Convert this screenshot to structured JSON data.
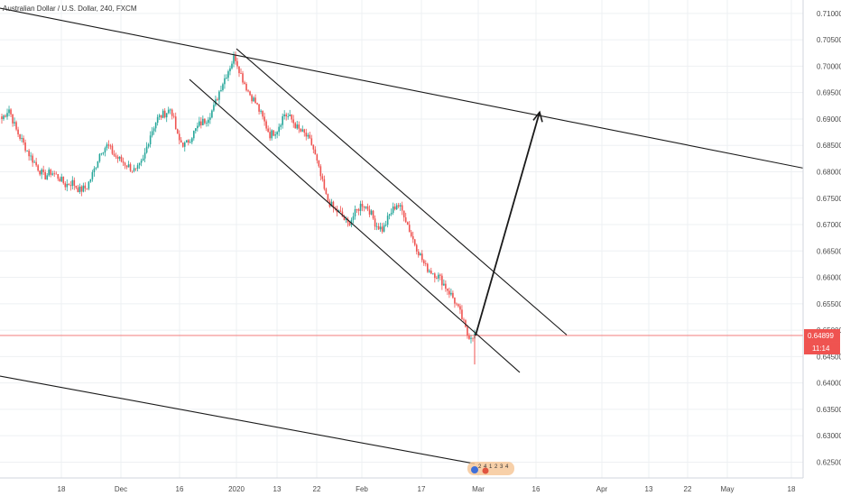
{
  "chart_data": {
    "type": "candlestick",
    "title": "Australian Dollar / U.S. Dollar, 240, FXCM",
    "colors": {
      "up": "#26a69a",
      "down": "#ef5350",
      "price_line": "#ef5350",
      "price_label_bg": "#ef5350",
      "drawing": "#1a1a1a",
      "grid": "#eef0f3",
      "axis_text": "#4a4a4a"
    },
    "y_axis": {
      "side": "right",
      "range": [
        0.622,
        0.7122
      ],
      "ticks": [
        "0.71000",
        "0.70500",
        "0.70000",
        "0.69500",
        "0.69000",
        "0.68500",
        "0.68000",
        "0.67500",
        "0.67000",
        "0.66500",
        "0.66000",
        "0.65500",
        "0.65000",
        "0.64500",
        "0.64000",
        "0.63500",
        "0.63000",
        "0.62500"
      ]
    },
    "x_axis": {
      "ticks": [
        "18",
        "Dec",
        "16",
        "2020",
        "13",
        "22",
        "Feb",
        "17",
        "Mar",
        "16",
        "Apr",
        "13",
        "22",
        "May",
        "18"
      ]
    },
    "last_price": "0.64899",
    "countdown": "11:14",
    "event_markers": [
      "2",
      "4",
      "1",
      "2",
      "3",
      "4"
    ],
    "price_anchors": [
      [
        0.69,
        0.692,
        0.688,
        0.6855,
        0.683,
        0.681,
        0.679,
        0.68,
        0.679,
        0.6775,
        0.678,
        0.6765
      ],
      [
        0.677,
        0.68,
        0.684,
        0.685,
        0.683,
        0.682,
        0.681,
        0.68,
        0.682,
        0.687,
        0.69,
        0.691
      ],
      [
        0.692,
        0.686,
        0.685,
        0.687,
        0.689,
        0.69,
        0.692,
        0.696,
        0.699,
        0.702,
        0.698,
        0.695
      ],
      [
        0.693,
        0.69,
        0.687,
        0.688,
        0.691,
        0.69,
        0.688,
        0.687,
        0.685,
        0.68,
        0.675,
        0.673
      ],
      [
        0.672,
        0.67,
        0.672,
        0.674,
        0.673,
        0.67,
        0.669,
        0.672,
        0.674,
        0.672,
        0.668,
        0.665
      ],
      [
        0.662,
        0.661,
        0.66,
        0.658,
        0.656,
        0.653,
        0.649,
        0.649
      ]
    ]
  }
}
